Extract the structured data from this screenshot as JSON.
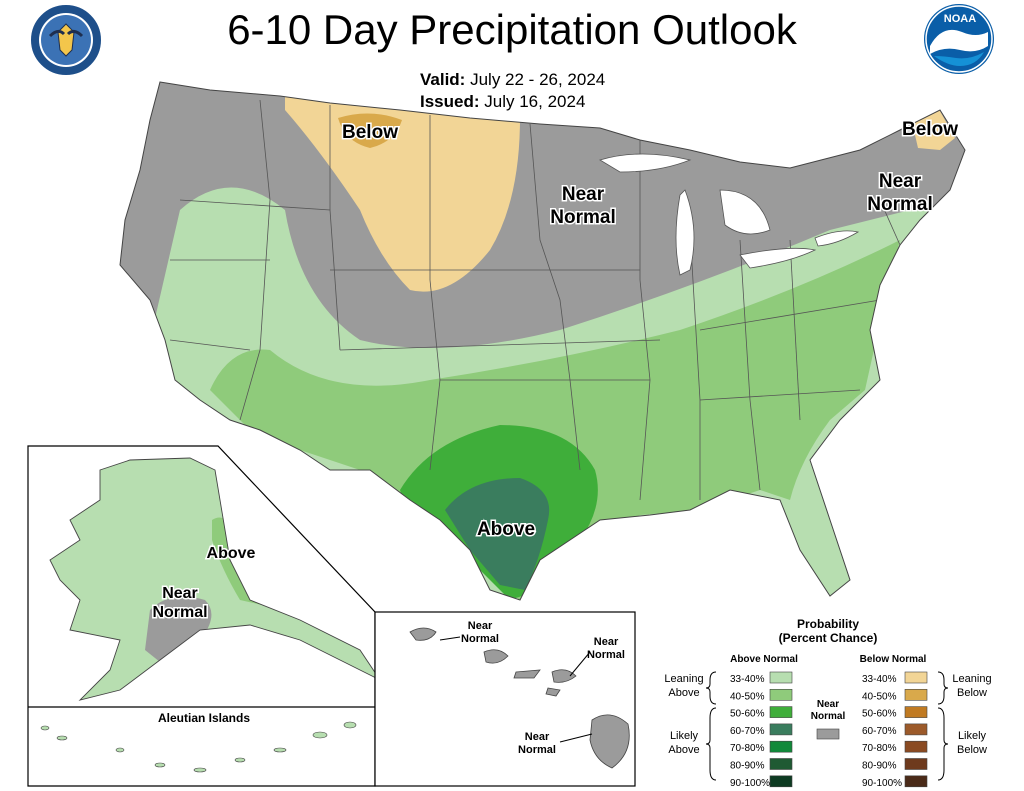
{
  "title": "6-10 Day Precipitation Outlook",
  "valid": {
    "label": "Valid:",
    "value": "July 22 - 26, 2024"
  },
  "issued": {
    "label": "Issued:",
    "value": "July 16, 2024"
  },
  "logos": {
    "left": "department-of-commerce-seal",
    "right": "noaa-logo"
  },
  "map_labels": {
    "conus_below_west": "Below",
    "conus_below_east": "Below",
    "conus_near_normal_mid_1": "Near",
    "conus_near_normal_mid_2": "Normal",
    "conus_near_normal_ne_1": "Near",
    "conus_near_normal_ne_2": "Normal",
    "conus_above": "Above",
    "alaska_above": "Above",
    "alaska_near_1": "Near",
    "alaska_near_2": "Normal",
    "aleutian_title": "Aleutian Islands",
    "hawaii_near_1a": "Near",
    "hawaii_near_1b": "Normal",
    "hawaii_near_2a": "Near",
    "hawaii_near_2b": "Normal",
    "hawaii_near_3a": "Near",
    "hawaii_near_3b": "Normal"
  },
  "legend": {
    "title_1": "Probability",
    "title_2": "(Percent Chance)",
    "above_header": "Above Normal",
    "below_header": "Below Normal",
    "near_label_1": "Near",
    "near_label_2": "Normal",
    "leaning_above_1": "Leaning",
    "leaning_above_2": "Above",
    "likely_above_1": "Likely",
    "likely_above_2": "Above",
    "leaning_below_1": "Leaning",
    "leaning_below_2": "Below",
    "likely_below_1": "Likely",
    "likely_below_2": "Below",
    "near_color": "#9b9b9b",
    "above": [
      {
        "range": "33-40%",
        "color": "#b7deb0"
      },
      {
        "range": "40-50%",
        "color": "#8fcb7b"
      },
      {
        "range": "50-60%",
        "color": "#3fae3a"
      },
      {
        "range": "60-70%",
        "color": "#3a7d5e"
      },
      {
        "range": "70-80%",
        "color": "#10893a"
      },
      {
        "range": "80-90%",
        "color": "#1f5a33"
      },
      {
        "range": "90-100%",
        "color": "#0e3b22"
      }
    ],
    "below": [
      {
        "range": "33-40%",
        "color": "#f2d596"
      },
      {
        "range": "40-50%",
        "color": "#d9a94b"
      },
      {
        "range": "50-60%",
        "color": "#c07a22"
      },
      {
        "range": "60-70%",
        "color": "#9c5a2a"
      },
      {
        "range": "70-80%",
        "color": "#8a4a22"
      },
      {
        "range": "80-90%",
        "color": "#6e3a1d"
      },
      {
        "range": "90-100%",
        "color": "#4a2a18"
      }
    ]
  },
  "colors": {
    "near_gray": "#9b9b9b",
    "above_33": "#b7deb0",
    "above_40": "#8fcb7b",
    "above_50": "#3fae3a",
    "above_60": "#3a7d5e",
    "below_33": "#f2d596",
    "below_40": "#d9a94b",
    "noaa_blue": "#0a5ea8"
  }
}
